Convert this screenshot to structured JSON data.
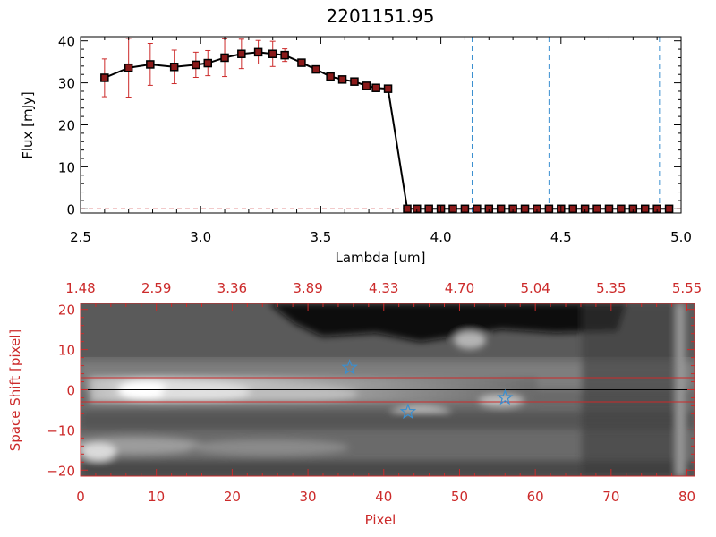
{
  "chart_data": [
    {
      "type": "line",
      "title": "2201151.95",
      "xlabel": "Lambda [um]",
      "ylabel": "Flux [mJy]",
      "xlim": [
        2.5,
        5.0
      ],
      "ylim": [
        -1,
        41
      ],
      "xticks": [
        {
          "value": 2.5,
          "label": "2.5"
        },
        {
          "value": 3.0,
          "label": "3.0"
        },
        {
          "value": 3.5,
          "label": "3.5"
        },
        {
          "value": 4.0,
          "label": "4.0"
        },
        {
          "value": 4.5,
          "label": "4.5"
        },
        {
          "value": 5.0,
          "label": "5.0"
        }
      ],
      "yticks": [
        {
          "value": 0,
          "label": "0"
        },
        {
          "value": 10,
          "label": "10"
        },
        {
          "value": 20,
          "label": "20"
        },
        {
          "value": 30,
          "label": "30"
        },
        {
          "value": 40,
          "label": "40"
        }
      ],
      "x": [
        2.6,
        2.7,
        2.79,
        2.89,
        2.98,
        3.03,
        3.1,
        3.17,
        3.24,
        3.3,
        3.35,
        3.42,
        3.48,
        3.54,
        3.59,
        3.64,
        3.69,
        3.73,
        3.78,
        3.86,
        3.9,
        3.95,
        4.0,
        4.05,
        4.1,
        4.15,
        4.2,
        4.25,
        4.3,
        4.35,
        4.4,
        4.45,
        4.5,
        4.55,
        4.6,
        4.65,
        4.7,
        4.75,
        4.8,
        4.85,
        4.9,
        4.95
      ],
      "y": [
        31.2,
        33.6,
        34.4,
        33.8,
        34.3,
        34.7,
        36.0,
        36.9,
        37.3,
        36.9,
        36.6,
        34.8,
        33.2,
        31.5,
        30.8,
        30.3,
        29.3,
        28.8,
        28.6,
        0,
        0,
        0,
        0,
        0,
        0,
        0,
        0,
        0,
        0,
        0,
        0,
        0,
        0,
        0,
        0,
        0,
        0,
        0,
        0,
        0,
        0,
        0
      ],
      "yerr": [
        4.5,
        7.0,
        5.0,
        4.0,
        3.0,
        3.0,
        4.5,
        3.5,
        2.8,
        3.0,
        1.5,
        0.6,
        0.6,
        0.6,
        0.5,
        0.5,
        0.4,
        0.4,
        0.4,
        0,
        0,
        0,
        0,
        0,
        0,
        0,
        0,
        0,
        0,
        0,
        0,
        0,
        0,
        0,
        0,
        0,
        0,
        0,
        0,
        0,
        0,
        0
      ],
      "vlines": [
        4.13,
        4.45,
        4.91
      ],
      "hline_dashed": 0,
      "colors": {
        "line": "#000000",
        "marker": "#8b1a1a",
        "errorbar": "#cc2a2a",
        "vline": "#3a8fd0",
        "hline": "#cc2a2a"
      }
    },
    {
      "type": "heatmap",
      "xlabel": "Pixel",
      "ylabel": "Space Shift [pixel]",
      "xlim": [
        0,
        81
      ],
      "ylim": [
        -21.5,
        21.5
      ],
      "xticks": [
        {
          "value": 0,
          "label": "0"
        },
        {
          "value": 10,
          "label": "10"
        },
        {
          "value": 20,
          "label": "20"
        },
        {
          "value": 30,
          "label": "30"
        },
        {
          "value": 40,
          "label": "40"
        },
        {
          "value": 50,
          "label": "50"
        },
        {
          "value": 60,
          "label": "60"
        },
        {
          "value": 70,
          "label": "70"
        },
        {
          "value": 80,
          "label": "80"
        }
      ],
      "top_xticks": [
        {
          "value": 0,
          "label": "1.48"
        },
        {
          "value": 10,
          "label": "2.59"
        },
        {
          "value": 20,
          "label": "3.36"
        },
        {
          "value": 30,
          "label": "3.89"
        },
        {
          "value": 40,
          "label": "4.33"
        },
        {
          "value": 50,
          "label": "4.70"
        },
        {
          "value": 60,
          "label": "5.04"
        },
        {
          "value": 70,
          "label": "5.35"
        },
        {
          "value": 80,
          "label": "5.55"
        }
      ],
      "yticks": [
        {
          "value": -20,
          "label": "−20"
        },
        {
          "value": -10,
          "label": "−10"
        },
        {
          "value": 0,
          "label": "0"
        },
        {
          "value": 10,
          "label": "10"
        },
        {
          "value": 20,
          "label": "20"
        }
      ],
      "hlines_red": [
        3,
        -3
      ],
      "hline_black": 0,
      "stars": [
        {
          "x": 35.5,
          "y": 5.5
        },
        {
          "x": 43.2,
          "y": -5.5
        },
        {
          "x": 56.0,
          "y": -2.0
        }
      ],
      "colors": {
        "axis": "#cc2a2a",
        "star": "#3a8fd0",
        "hline": "#cc2a2a",
        "hline_black": "#000000"
      }
    }
  ]
}
